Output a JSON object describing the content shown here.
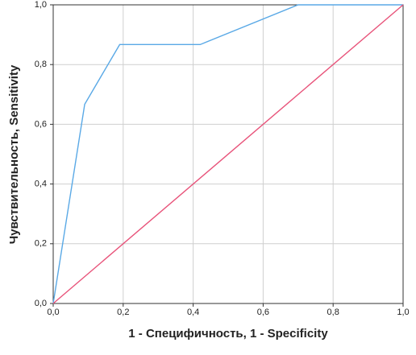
{
  "chart_data": {
    "type": "line",
    "xlabel": "1 - Специфичность, 1 - Specificity",
    "ylabel": "Чувствительность, Sensitivity",
    "series": [
      {
        "color": "#5aa9e6",
        "x": [
          0,
          0.09,
          0.19,
          0.42,
          0.7,
          1.0
        ],
        "values": [
          0,
          0.667,
          0.867,
          0.867,
          1.0,
          1.0
        ]
      },
      {
        "color": "#e8537a",
        "x": [
          0,
          1.0
        ],
        "values": [
          0,
          1.0
        ]
      }
    ],
    "xlim": [
      0,
      1
    ],
    "ylim": [
      0,
      1
    ],
    "xticks": [
      {
        "value": 0,
        "label": "0,0"
      },
      {
        "value": 0.2,
        "label": "0,2"
      },
      {
        "value": 0.4,
        "label": "0,4"
      },
      {
        "value": 0.6,
        "label": "0,6"
      },
      {
        "value": 0.8,
        "label": "0,8"
      },
      {
        "value": 1,
        "label": "1,0"
      }
    ],
    "yticks": [
      {
        "value": 0,
        "label": "0,0"
      },
      {
        "value": 0.2,
        "label": "0,2"
      },
      {
        "value": 0.4,
        "label": "0,4"
      },
      {
        "value": 0.6,
        "label": "0,6"
      },
      {
        "value": 0.8,
        "label": "0,8"
      },
      {
        "value": 1,
        "label": "1,0"
      }
    ],
    "grid": true
  }
}
